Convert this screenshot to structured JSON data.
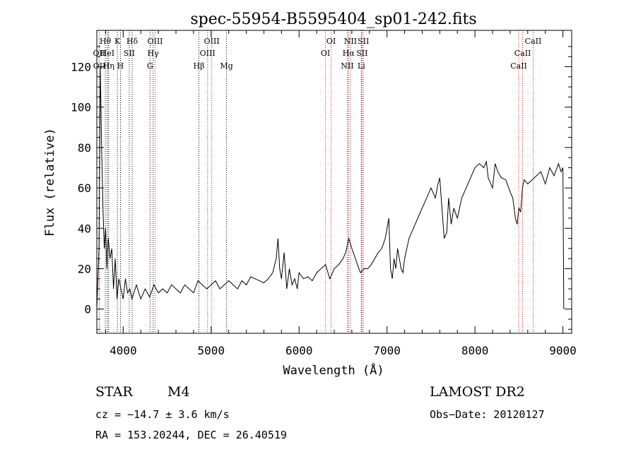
{
  "chart_data": {
    "type": "line",
    "title": "spec-55954-B5595404_sp01-242.fits",
    "xlabel": "Wavelength (Å)",
    "ylabel": "Flux (relative)",
    "xlim": [
      3700,
      9100
    ],
    "ylim": [
      -12,
      138
    ],
    "xticks": [
      4000,
      5000,
      6000,
      7000,
      8000,
      9000
    ],
    "yticks": [
      0,
      20,
      40,
      60,
      80,
      100,
      120
    ],
    "grid": false,
    "series": [
      {
        "x": [
          3700,
          3725,
          3740,
          3755,
          3770,
          3785,
          3800,
          3815,
          3830,
          3850,
          3870,
          3890,
          3910,
          3930,
          3950,
          3975,
          4000,
          4025,
          4050,
          4075,
          4100,
          4150,
          4200,
          4250,
          4300,
          4350,
          4400,
          4450,
          4500,
          4550,
          4600,
          4650,
          4700,
          4750,
          4800,
          4850,
          4900,
          4950,
          5000,
          5050,
          5100,
          5150,
          5200,
          5250,
          5300,
          5350,
          5400,
          5450,
          5500,
          5550,
          5600,
          5650,
          5700,
          5740,
          5760,
          5780,
          5800,
          5830,
          5860,
          5890,
          5920,
          5950,
          5980,
          6000,
          6050,
          6100,
          6150,
          6200,
          6250,
          6300,
          6350,
          6400,
          6450,
          6500,
          6530,
          6565,
          6600,
          6640,
          6680,
          6700,
          6740,
          6780,
          6820,
          6860,
          6900,
          6940,
          6980,
          7020,
          7040,
          7060,
          7080,
          7100,
          7120,
          7140,
          7160,
          7180,
          7200,
          7250,
          7300,
          7350,
          7400,
          7450,
          7500,
          7550,
          7580,
          7600,
          7625,
          7650,
          7680,
          7700,
          7730,
          7760,
          7800,
          7850,
          7900,
          7950,
          8000,
          8050,
          8100,
          8130,
          8150,
          8180,
          8200,
          8230,
          8260,
          8300,
          8350,
          8400,
          8430,
          8460,
          8480,
          8500,
          8520,
          8540,
          8560,
          8600,
          8650,
          8700,
          8750,
          8800,
          8850,
          8900,
          8950,
          8980,
          9000,
          9010
        ],
        "values": [
          0,
          30,
          120,
          80,
          50,
          30,
          40,
          20,
          35,
          25,
          30,
          10,
          25,
          5,
          15,
          10,
          5,
          15,
          8,
          10,
          5,
          12,
          5,
          10,
          6,
          12,
          8,
          10,
          8,
          12,
          10,
          8,
          12,
          10,
          8,
          14,
          12,
          10,
          12,
          14,
          10,
          12,
          14,
          12,
          10,
          14,
          12,
          16,
          15,
          14,
          13,
          15,
          18,
          25,
          35,
          20,
          15,
          28,
          10,
          20,
          12,
          15,
          10,
          18,
          15,
          16,
          14,
          18,
          20,
          22,
          15,
          20,
          22,
          25,
          28,
          35,
          30,
          25,
          20,
          18,
          20,
          20,
          22,
          25,
          28,
          30,
          35,
          45,
          20,
          15,
          25,
          20,
          30,
          25,
          20,
          18,
          25,
          35,
          40,
          45,
          50,
          55,
          60,
          55,
          62,
          65,
          50,
          35,
          38,
          55,
          42,
          50,
          45,
          55,
          60,
          65,
          70,
          72,
          70,
          73,
          65,
          62,
          60,
          72,
          68,
          65,
          64,
          58,
          55,
          45,
          42,
          50,
          48,
          60,
          64,
          62,
          64,
          66,
          68,
          62,
          70,
          66,
          72,
          68,
          70,
          0
        ],
        "style": "solid",
        "color": "#000000"
      }
    ],
    "lines": [
      {
        "label": "OII",
        "x": 3727,
        "row": 1,
        "color": "#ff0000"
      },
      {
        "label": "OII",
        "x": 3729,
        "row": 2,
        "color": "#ff0000"
      },
      {
        "label": "Hθ",
        "x": 3797,
        "row": 0,
        "color": "#000000"
      },
      {
        "label": "HeI",
        "x": 3820,
        "row": 1,
        "color": "#000000"
      },
      {
        "label": "Hη",
        "x": 3835,
        "row": 2,
        "color": "#000000"
      },
      {
        "label": "K",
        "x": 3934,
        "row": 0,
        "color": "#000000"
      },
      {
        "label": "SII",
        "x": 4069,
        "row": 1,
        "color": "#000000"
      },
      {
        "label": "H",
        "x": 3969,
        "row": 2,
        "color": "#000000"
      },
      {
        "label": "Hδ",
        "x": 4102,
        "row": 0,
        "color": "#000000"
      },
      {
        "label": "OIII",
        "x": 4363,
        "row": 0,
        "color": "#ff0000"
      },
      {
        "label": "Hγ",
        "x": 4340,
        "row": 1,
        "color": "#000000"
      },
      {
        "label": "G",
        "x": 4305,
        "row": 2,
        "color": "#000000"
      },
      {
        "label": "OIII",
        "x": 5007,
        "row": 0,
        "color": "#ff0000"
      },
      {
        "label": "OIII",
        "x": 4959,
        "row": 1,
        "color": "#ff0000"
      },
      {
        "label": "Hβ",
        "x": 4861,
        "row": 2,
        "color": "#000000"
      },
      {
        "label": "Mg",
        "x": 5175,
        "row": 2,
        "color": "#000000"
      },
      {
        "label": "OI",
        "x": 6364,
        "row": 0,
        "color": "#ff0000"
      },
      {
        "label": "OI",
        "x": 6300,
        "row": 1,
        "color": "#ff0000"
      },
      {
        "label": "NII",
        "x": 6584,
        "row": 0,
        "color": "#ff0000"
      },
      {
        "label": "SII",
        "x": 6731,
        "row": 0,
        "color": "#ff0000"
      },
      {
        "label": "Hα",
        "x": 6563,
        "row": 1,
        "color": "#000000"
      },
      {
        "label": "SII",
        "x": 6716,
        "row": 1,
        "color": "#ff0000"
      },
      {
        "label": "NII",
        "x": 6548,
        "row": 2,
        "color": "#ff0000"
      },
      {
        "label": "Li",
        "x": 6708,
        "row": 2,
        "color": "#000000"
      },
      {
        "label": "CaII",
        "x": 8662,
        "row": 0,
        "color": "#ff0000"
      },
      {
        "label": "CaII",
        "x": 8542,
        "row": 1,
        "color": "#ff0000"
      },
      {
        "label": "CaII",
        "x": 8498,
        "row": 2,
        "color": "#ff0000"
      }
    ]
  },
  "info": {
    "class_label": "STAR",
    "subclass_label": "M4",
    "survey": "LAMOST DR2",
    "velocity": "cz = −14.7 ± 3.6 km/s",
    "obs_date": "Obs−Date: 20120127",
    "coords": "RA = 153.20244, DEC =  26.40519"
  }
}
